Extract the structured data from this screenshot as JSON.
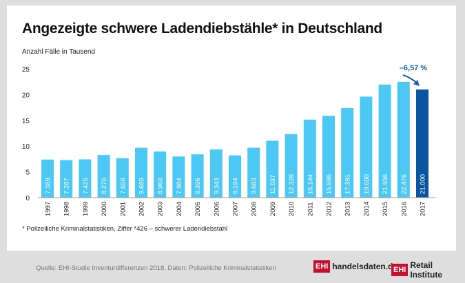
{
  "chart_data": {
    "type": "bar",
    "title": "Angezeigte schwere Ladendiebstähle* in Deutschland",
    "ylabel": "Anzahl Fälle in Tausend",
    "categories": [
      "1997",
      "1998",
      "1999",
      "2000",
      "2001",
      "2002",
      "2003",
      "2004",
      "2005",
      "2006",
      "2007",
      "2008",
      "2009",
      "2010",
      "2011",
      "2012",
      "2013",
      "2014",
      "2015",
      "2016",
      "2017"
    ],
    "values": [
      7.389,
      7.287,
      7.425,
      8.27,
      7.658,
      9.68,
      8.96,
      7.984,
      8.396,
      9.343,
      8.194,
      9.683,
      11.037,
      12.328,
      15.144,
      15.886,
      17.391,
      19.6,
      21.936,
      22.476,
      21.0
    ],
    "data_labels": [
      "7.389",
      "7.287",
      "7.425",
      "8.270",
      "7.658",
      "9.680",
      "8.960",
      "7.984",
      "8.396",
      "9.343",
      "8.194",
      "9.683",
      "11.037",
      "12.328",
      "15.144",
      "15.886",
      "17.391",
      "19.600",
      "21.936",
      "22.476",
      "21.000"
    ],
    "yticks": [
      0,
      5,
      10,
      15,
      20,
      25
    ],
    "ylim": [
      0,
      25
    ],
    "grid": false,
    "colors": {
      "bar": "#4dc8f5",
      "highlight": "#0a55a0",
      "annotation": "#1a5fa8"
    },
    "annotation": "–6,57 %"
  },
  "footnote": "* Polizeiliche Kriminalstatistiken, Ziffer *426 – schwerer Ladendiebstahl",
  "source": "Quelle: EHI-Studie Inventurdifferenzen 2018, Daten: Polizeiliche Kriminalstatistiken",
  "logos": {
    "ehi": "EHI",
    "site": "handelsdaten.de",
    "institute": "Retail Institute"
  }
}
